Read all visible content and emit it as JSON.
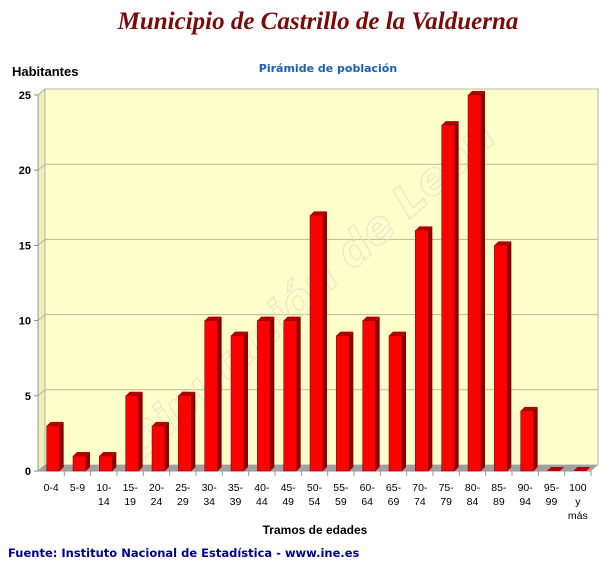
{
  "header": {
    "title": "Municipio de Castrillo de la Valduerna"
  },
  "footer": {
    "source": "Fuente: Instituto Nacional de Estadística - www.ine.es"
  },
  "watermark": "Diputación de León",
  "colors": {
    "bar": "#ff0000",
    "bar_side": "#8b0000",
    "wall": "#ffffcc",
    "floor": "#a0a0a0"
  },
  "chart_data": {
    "type": "bar",
    "title": "Pirámide de población",
    "xlabel": "Tramos de edades",
    "ylabel": "Habitantes",
    "ylim": [
      0,
      25
    ],
    "yticks": [
      0,
      5,
      10,
      15,
      20,
      25
    ],
    "grid": true,
    "categories": [
      "0-4",
      "5-9",
      "10-14",
      "15-19",
      "20-24",
      "25-29",
      "30-34",
      "35-39",
      "40-44",
      "45-49",
      "50-54",
      "55-59",
      "60-64",
      "65-69",
      "70-74",
      "75-79",
      "80-84",
      "85-89",
      "90-94",
      "95-99",
      "100 y más"
    ],
    "category_lines": [
      [
        "0-4"
      ],
      [
        "5-9"
      ],
      [
        "10-",
        "14"
      ],
      [
        "15-",
        "19"
      ],
      [
        "20-",
        "24"
      ],
      [
        "25-",
        "29"
      ],
      [
        "30-",
        "34"
      ],
      [
        "35-",
        "39"
      ],
      [
        "40-",
        "44"
      ],
      [
        "45-",
        "49"
      ],
      [
        "50-",
        "54"
      ],
      [
        "55-",
        "59"
      ],
      [
        "60-",
        "64"
      ],
      [
        "65-",
        "69"
      ],
      [
        "70-",
        "74"
      ],
      [
        "75-",
        "79"
      ],
      [
        "80-",
        "84"
      ],
      [
        "85-",
        "89"
      ],
      [
        "90-",
        "94"
      ],
      [
        "95-",
        "99"
      ],
      [
        "100",
        "y",
        "más"
      ]
    ],
    "values": [
      3,
      1,
      1,
      5,
      3,
      5,
      10,
      9,
      10,
      10,
      17,
      9,
      10,
      9,
      16,
      23,
      25,
      15,
      4,
      0,
      0
    ]
  }
}
